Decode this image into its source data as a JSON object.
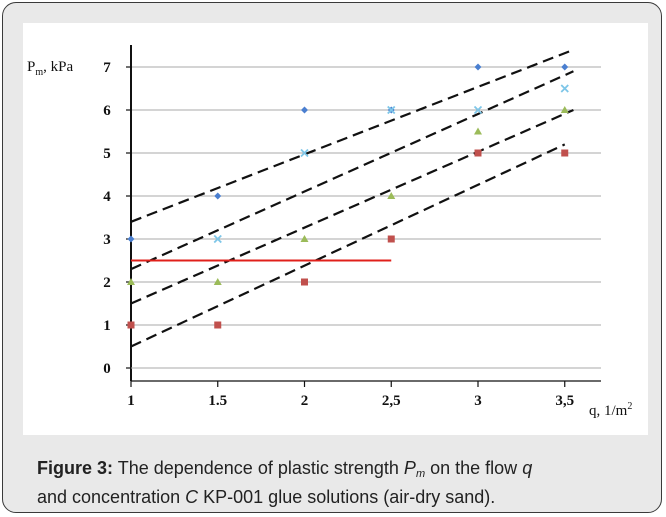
{
  "caption": {
    "label": "Figure 3:",
    "text_1": "The dependence of plastic strength",
    "symbol_main": "P",
    "symbol_sub": "m",
    "text_2": "on the flow",
    "flow_symbol": "q",
    "text_3": "and concentration",
    "conc_symbol": "C",
    "text_4": "KP-001 glue solutions (air-dry sand)."
  },
  "chart_data": {
    "type": "scatter",
    "ylabel_main": "P",
    "ylabel_sub": "m",
    "ylabel_unit": ", kPa",
    "xlabel_main": "q, 1/m",
    "xlabel_sup": "2",
    "x_tick_labels": [
      "1",
      "1.5",
      "2",
      "2,5",
      "3",
      "3,5"
    ],
    "y_tick_labels": [
      "0",
      "1",
      "2",
      "3",
      "4",
      "5",
      "6",
      "7"
    ],
    "xlim": [
      1,
      3.7
    ],
    "ylim": [
      -0.5,
      7.5
    ],
    "grid": "horizontal",
    "series": [
      {
        "color": "#4a7fd0",
        "marker": "diamond",
        "x": [
          1,
          1.5,
          2,
          2.5,
          3,
          3.5
        ],
        "y": [
          3,
          4,
          6,
          6,
          7,
          7
        ]
      },
      {
        "color": "#7ec6e8",
        "marker": "cross",
        "x": [
          1.5,
          2,
          2.5,
          3,
          3.5
        ],
        "y": [
          3,
          5,
          6,
          6,
          6.5
        ]
      },
      {
        "color": "#9bbb59",
        "marker": "triangle",
        "x": [
          1,
          1.5,
          2,
          2.5,
          3,
          3.5
        ],
        "y": [
          2,
          2,
          3,
          4,
          5.5,
          6
        ]
      },
      {
        "color": "#c0504d",
        "marker": "square",
        "x": [
          1,
          1.5,
          2,
          2.5,
          3,
          3.5
        ],
        "y": [
          1,
          1,
          2,
          3,
          5,
          5
        ]
      }
    ],
    "trend_lines": [
      {
        "style": "dashed",
        "color": "#111111",
        "from": [
          1,
          3.4
        ],
        "to": [
          3.55,
          7.4
        ]
      },
      {
        "style": "dashed",
        "color": "#111111",
        "from": [
          1,
          2.3
        ],
        "to": [
          3.55,
          6.9
        ]
      },
      {
        "style": "dashed",
        "color": "#111111",
        "from": [
          1,
          1.5
        ],
        "to": [
          3.55,
          6.0
        ]
      },
      {
        "style": "dashed",
        "color": "#111111",
        "from": [
          1,
          0.5
        ],
        "to": [
          3.5,
          5.2
        ]
      }
    ],
    "reference_line": {
      "color": "#e0201b",
      "y": 2.5,
      "x_from": 1,
      "x_to": 2.5
    }
  }
}
